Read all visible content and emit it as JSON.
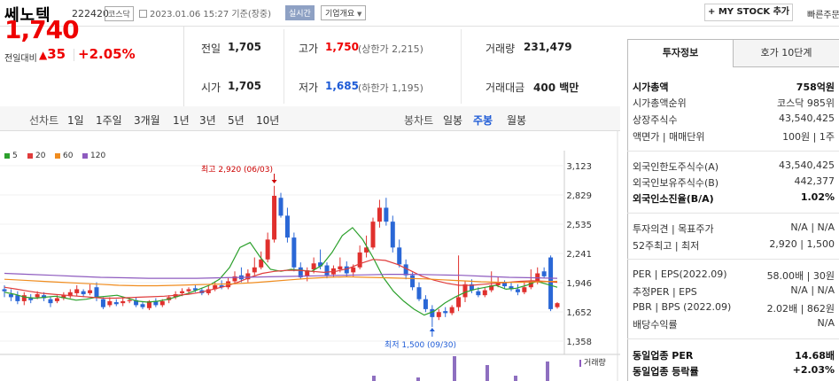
{
  "header": {
    "title": "쎄노텍",
    "code": "222420",
    "market": "코스닥",
    "datetime": "2023.01.06 15:27 기준(장중)",
    "live": "실시간",
    "company_info": "기업개요",
    "mystock_button": "+ MY STOCK 추가",
    "quick_order": "빠른주문"
  },
  "price": {
    "current": "1,740",
    "change_label": "전일대비",
    "change": "35",
    "percent": "+2.05%"
  },
  "stats": {
    "prev_label": "전일",
    "prev": "1,705",
    "open_label": "시가",
    "open": "1,705",
    "high_label": "고가",
    "high": "1,750",
    "upper_limit": "(상한가 2,215)",
    "low_label": "저가",
    "low": "1,685",
    "lower_limit": "(하한가 1,195)",
    "volume_label": "거래량",
    "volume": "231,479",
    "amount_label": "거래대금",
    "amount": "400 백만"
  },
  "periods": {
    "line_label": "선차트",
    "line_items": [
      "1일",
      "1주일",
      "3개월",
      "1년",
      "3년",
      "5년",
      "10년"
    ],
    "candle_label": "봉차트",
    "candle_items": [
      "일봉",
      "주봉",
      "월봉"
    ],
    "selected_candle": "주봉"
  },
  "chart_data": {
    "type": "candlestick",
    "moving_averages": [
      {
        "name": "5",
        "color": "#2ca02c"
      },
      {
        "name": "20",
        "color": "#e03c3c"
      },
      {
        "name": "60",
        "color": "#f08c1e"
      },
      {
        "name": "120",
        "color": "#8e5bbf"
      }
    ],
    "y_ticks": [
      3123,
      2829,
      2535,
      2241,
      1946,
      1652,
      1358
    ],
    "y_tick_labels": [
      "3,123",
      "2,829",
      "2,535",
      "2,241",
      "1,946",
      "1,652",
      "1,358"
    ],
    "high_annotation": "최고 2,920 (06/03)",
    "low_annotation": "최저 1,500 (09/30)",
    "volume_label": "거래량"
  },
  "invest_panel": {
    "tab_active": "투자정보",
    "tab_other": "호가 10단계",
    "rows": [
      {
        "k": "시가총액",
        "v": "758억원",
        "bold": true
      },
      {
        "k": "시가총액순위",
        "v": "코스닥 985위"
      },
      {
        "k": "상장주식수",
        "v": "43,540,425"
      },
      {
        "k": "액면가 | 매매단위",
        "v": "100원 | 1주"
      },
      {
        "k": "외국인한도주식수(A)",
        "v": "43,540,425"
      },
      {
        "k": "외국인보유주식수(B)",
        "v": "442,377"
      },
      {
        "k": "외국인소진율(B/A)",
        "v": "1.02%",
        "bold": true
      },
      {
        "k": "투자의견 | 목표주가",
        "v": "N/A | N/A"
      },
      {
        "k": "52주최고 | 최저",
        "v": "2,920 | 1,500"
      },
      {
        "k": "PER | EPS(2022.09)",
        "v": "58.00배 | 30원"
      },
      {
        "k": "추정PER | EPS",
        "v": "N/A | N/A"
      },
      {
        "k": "PBR | BPS (2022.09)",
        "v": "2.02배 | 862원"
      },
      {
        "k": "배당수익률",
        "v": "N/A"
      },
      {
        "k": "동일업종 PER",
        "v": "14.68배",
        "bold": true
      },
      {
        "k": "동일업종 등락률",
        "v": "+2.03%",
        "bold": true,
        "red": true
      }
    ]
  }
}
